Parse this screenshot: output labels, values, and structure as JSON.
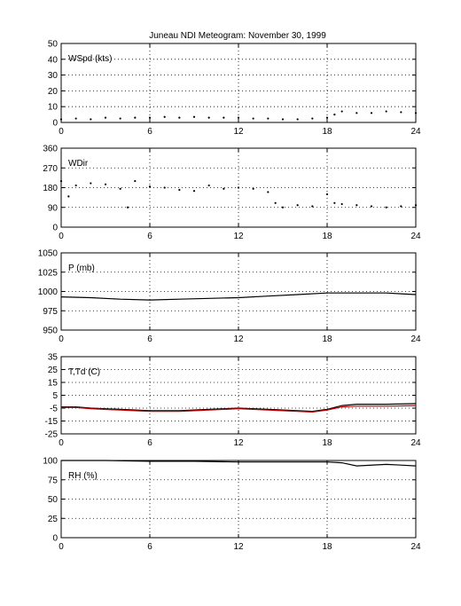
{
  "title": "Juneau NDI Meteogram:  November 30, 1999",
  "chart_data": [
    {
      "type": "scatter",
      "panel_label": "WSpd (kts)",
      "xlim": [
        0,
        24
      ],
      "ylim": [
        0,
        50
      ],
      "xticks": [
        0,
        6,
        12,
        18,
        24
      ],
      "yticks": [
        0,
        10,
        20,
        30,
        40,
        50
      ],
      "grid": true,
      "series": [
        {
          "color": "#000000",
          "points": [
            [
              0,
              2
            ],
            [
              1,
              2.5
            ],
            [
              2,
              2
            ],
            [
              3,
              3
            ],
            [
              4,
              2.5
            ],
            [
              5,
              3
            ],
            [
              6,
              3
            ],
            [
              7,
              3.5
            ],
            [
              8,
              3
            ],
            [
              9,
              3.5
            ],
            [
              10,
              3
            ],
            [
              11,
              3
            ],
            [
              12,
              3
            ],
            [
              13,
              2.5
            ],
            [
              14,
              2.5
            ],
            [
              15,
              2
            ],
            [
              16,
              2
            ],
            [
              17,
              2.5
            ],
            [
              18,
              3
            ],
            [
              18.5,
              5
            ],
            [
              19,
              7
            ],
            [
              20,
              6
            ],
            [
              21,
              6
            ],
            [
              22,
              7
            ],
            [
              23,
              6.5
            ],
            [
              24,
              6
            ]
          ]
        }
      ]
    },
    {
      "type": "scatter",
      "panel_label": "WDir",
      "xlim": [
        0,
        24
      ],
      "ylim": [
        0,
        360
      ],
      "xticks": [
        0,
        6,
        12,
        18,
        24
      ],
      "yticks": [
        0,
        90,
        180,
        270,
        360
      ],
      "grid": true,
      "series": [
        {
          "color": "#000000",
          "points": [
            [
              0,
              210
            ],
            [
              0.5,
              140
            ],
            [
              1,
              190
            ],
            [
              2,
              200
            ],
            [
              3,
              195
            ],
            [
              4,
              175
            ],
            [
              4.5,
              90
            ],
            [
              5,
              210
            ],
            [
              6,
              185
            ],
            [
              7,
              180
            ],
            [
              8,
              170
            ],
            [
              9,
              165
            ],
            [
              10,
              190
            ],
            [
              11,
              175
            ],
            [
              12,
              180
            ],
            [
              13,
              175
            ],
            [
              14,
              160
            ],
            [
              14.5,
              110
            ],
            [
              15,
              90
            ],
            [
              16,
              100
            ],
            [
              17,
              95
            ],
            [
              18,
              150
            ],
            [
              18.5,
              110
            ],
            [
              19,
              105
            ],
            [
              20,
              100
            ],
            [
              21,
              95
            ],
            [
              22,
              90
            ],
            [
              23,
              95
            ],
            [
              24,
              100
            ]
          ]
        }
      ]
    },
    {
      "type": "line",
      "panel_label": "P (mb)",
      "xlim": [
        0,
        24
      ],
      "ylim": [
        950,
        1050
      ],
      "xticks": [
        0,
        6,
        12,
        18,
        24
      ],
      "yticks": [
        950,
        975,
        1000,
        1025,
        1050
      ],
      "grid": true,
      "series": [
        {
          "color": "#000000",
          "points": [
            [
              0,
              993
            ],
            [
              2,
              992
            ],
            [
              4,
              990
            ],
            [
              6,
              989
            ],
            [
              8,
              990
            ],
            [
              10,
              991
            ],
            [
              12,
              992
            ],
            [
              14,
              994
            ],
            [
              16,
              996
            ],
            [
              18,
              998
            ],
            [
              20,
              998
            ],
            [
              22,
              998
            ],
            [
              23,
              997
            ],
            [
              24,
              996
            ]
          ]
        }
      ]
    },
    {
      "type": "line",
      "panel_label": "T,Td (C)",
      "xlim": [
        0,
        24
      ],
      "ylim": [
        -25,
        35
      ],
      "xticks": [
        0,
        6,
        12,
        18,
        24
      ],
      "yticks": [
        -25,
        -15,
        -5,
        5,
        15,
        25,
        35
      ],
      "grid": true,
      "series": [
        {
          "color": "#000000",
          "points": [
            [
              0,
              -4
            ],
            [
              1,
              -4
            ],
            [
              2,
              -5
            ],
            [
              4,
              -6
            ],
            [
              6,
              -7
            ],
            [
              8,
              -7
            ],
            [
              10,
              -6
            ],
            [
              12,
              -5
            ],
            [
              14,
              -6
            ],
            [
              16,
              -7
            ],
            [
              17,
              -7.5
            ],
            [
              18,
              -6
            ],
            [
              19,
              -3
            ],
            [
              20,
              -2
            ],
            [
              22,
              -2
            ],
            [
              24,
              -1.5
            ]
          ]
        },
        {
          "color": "#cc0000",
          "points": [
            [
              0,
              -4.5
            ],
            [
              1,
              -4.5
            ],
            [
              2,
              -5.5
            ],
            [
              4,
              -6.5
            ],
            [
              6,
              -7.5
            ],
            [
              8,
              -7.5
            ],
            [
              10,
              -6.5
            ],
            [
              12,
              -5.5
            ],
            [
              14,
              -6.5
            ],
            [
              16,
              -7.5
            ],
            [
              17,
              -8
            ],
            [
              18,
              -6.5
            ],
            [
              19,
              -4
            ],
            [
              20,
              -3.5
            ],
            [
              22,
              -3.5
            ],
            [
              24,
              -3
            ]
          ]
        }
      ]
    },
    {
      "type": "line",
      "panel_label": "RH (%)",
      "xlim": [
        0,
        24
      ],
      "ylim": [
        0,
        100
      ],
      "xticks": [
        0,
        6,
        12,
        18,
        24
      ],
      "yticks": [
        0,
        25,
        50,
        75,
        100
      ],
      "grid": true,
      "series": [
        {
          "color": "#000000",
          "points": [
            [
              0,
              100
            ],
            [
              3,
              100
            ],
            [
              6,
              99
            ],
            [
              9,
              99
            ],
            [
              12,
              98
            ],
            [
              15,
              98
            ],
            [
              18,
              98
            ],
            [
              19,
              97
            ],
            [
              20,
              93
            ],
            [
              22,
              95
            ],
            [
              23,
              94
            ],
            [
              24,
              93
            ]
          ]
        }
      ]
    }
  ]
}
